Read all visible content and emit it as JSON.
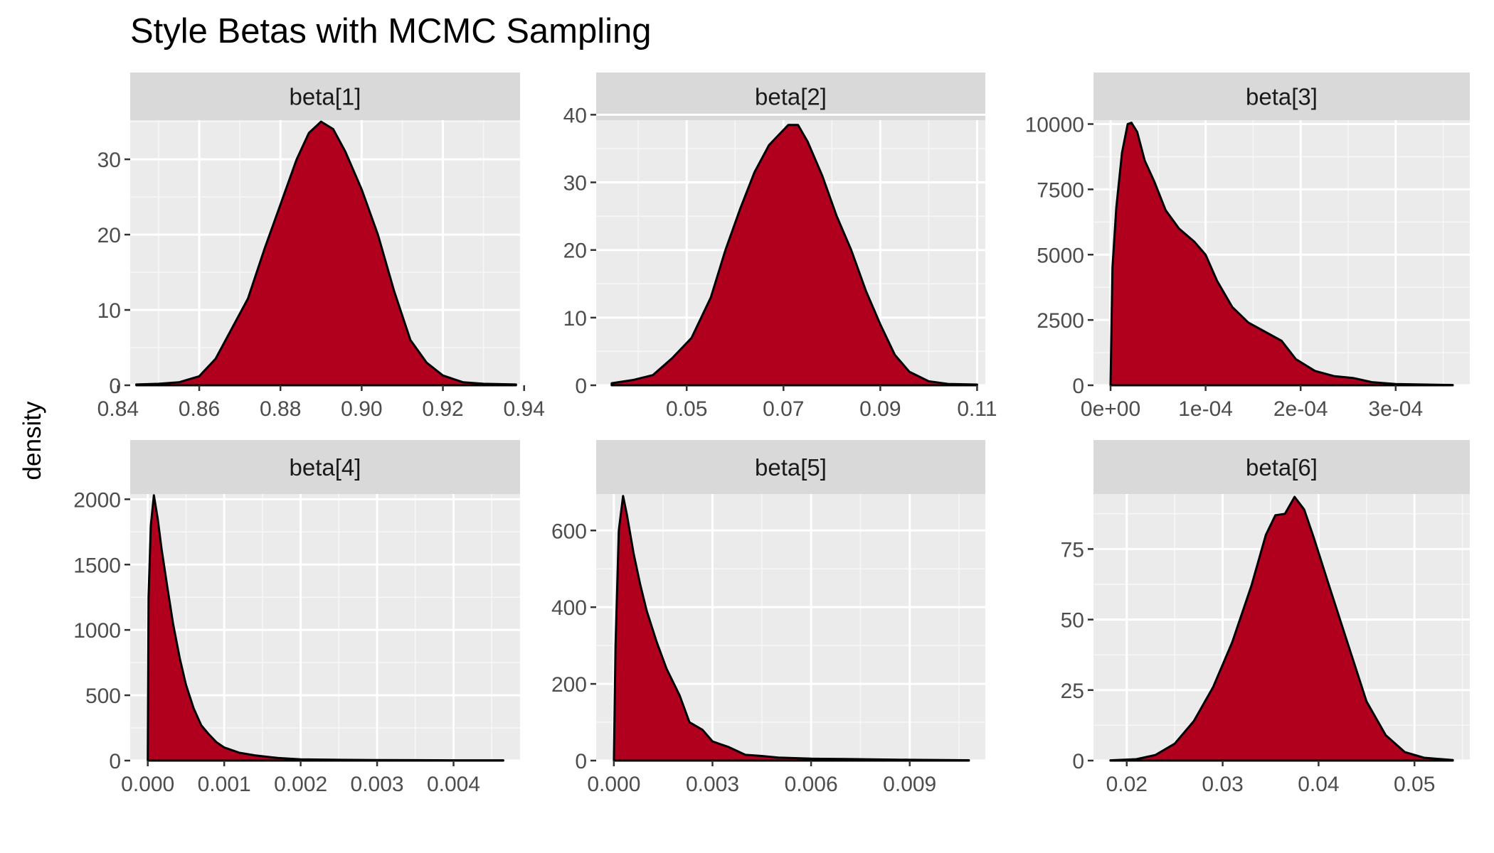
{
  "figure": {
    "title": "Style Betas with MCMC Sampling",
    "ylabel": "density",
    "fill_color": "#B0001E",
    "panel_bg": "#EBEBEB",
    "strip_bg": "#D9D9D9"
  },
  "chart_data": [
    {
      "type": "area",
      "title": "beta[1]",
      "xlim": [
        0.843,
        0.939
      ],
      "ylim": [
        0,
        35.2
      ],
      "xticks": [
        0.84,
        0.86,
        0.88,
        0.9,
        0.92,
        0.94
      ],
      "xticklabels": [
        "0.84",
        "0.86",
        "0.88",
        "0.90",
        "0.92",
        "0.94"
      ],
      "yticks": [
        0,
        10,
        20,
        30
      ],
      "yticklabels": [
        "0",
        "10",
        "20",
        "30"
      ],
      "x": [
        0.8445,
        0.85,
        0.855,
        0.86,
        0.864,
        0.868,
        0.872,
        0.876,
        0.88,
        0.884,
        0.887,
        0.89,
        0.893,
        0.896,
        0.9,
        0.904,
        0.908,
        0.912,
        0.916,
        0.92,
        0.925,
        0.93,
        0.938
      ],
      "y": [
        0.1,
        0.2,
        0.4,
        1.2,
        3.5,
        7.5,
        11.5,
        18,
        24,
        30,
        33.5,
        35,
        34,
        31,
        26,
        20,
        12.5,
        6,
        3,
        1.3,
        0.4,
        0.2,
        0.1
      ]
    },
    {
      "type": "area",
      "title": "beta[2]",
      "xlim": [
        0.0313,
        0.1117
      ],
      "ylim": [
        0,
        39.2
      ],
      "xticks": [
        0.05,
        0.07,
        0.09,
        0.11
      ],
      "xticklabels": [
        "0.05",
        "0.07",
        "0.09",
        "0.11"
      ],
      "yticks": [
        0,
        10,
        20,
        30,
        40
      ],
      "yticklabels": [
        "0",
        "10",
        "20",
        "30",
        "40"
      ],
      "x": [
        0.0345,
        0.039,
        0.043,
        0.047,
        0.051,
        0.055,
        0.058,
        0.061,
        0.064,
        0.067,
        0.069,
        0.071,
        0.073,
        0.075,
        0.078,
        0.081,
        0.084,
        0.087,
        0.09,
        0.093,
        0.096,
        0.1,
        0.104,
        0.11
      ],
      "y": [
        0.3,
        0.8,
        1.5,
        4,
        7,
        13,
        20,
        26,
        31.5,
        35.5,
        37,
        38.5,
        38.5,
        36,
        31,
        25,
        20,
        14,
        9,
        4.5,
        2,
        0.6,
        0.2,
        0.1
      ]
    },
    {
      "type": "area",
      "title": "beta[3]",
      "xlim": [
        -1.8e-05,
        0.000378
      ],
      "ylim": [
        0,
        10150
      ],
      "xticks": [
        0,
        0.0001,
        0.0002,
        0.0003
      ],
      "xticklabels": [
        "0e+00",
        "1e-04",
        "2e-04",
        "3e-04"
      ],
      "yticks": [
        0,
        2500,
        5000,
        7500,
        10000
      ],
      "yticklabels": [
        "0",
        "2500",
        "5000",
        "7500",
        "10000"
      ],
      "x": [
        0.0,
        2e-06,
        6e-06,
        1.2e-05,
        1.8e-05,
        2.2e-05,
        2.8e-05,
        3.6e-05,
        4.6e-05,
        5.8e-05,
        7.2e-05,
        8.8e-05,
        0.0001,
        0.000112,
        0.000128,
        0.000145,
        0.000165,
        0.00018,
        0.000195,
        0.000215,
        0.000235,
        0.000255,
        0.000275,
        0.0003,
        0.00036
      ],
      "y": [
        0,
        4500,
        6800,
        8900,
        10000,
        10050,
        9700,
        8600,
        7800,
        6700,
        6000,
        5500,
        5000,
        4000,
        3000,
        2400,
        2000,
        1700,
        1000,
        550,
        350,
        280,
        120,
        50,
        10
      ]
    },
    {
      "type": "area",
      "title": "beta[4]",
      "xlim": [
        -0.00023,
        0.00487
      ],
      "ylim": [
        0,
        2040
      ],
      "xticks": [
        0,
        0.001,
        0.002,
        0.003,
        0.004
      ],
      "xticklabels": [
        "0.000",
        "0.001",
        "0.002",
        "0.003",
        "0.004"
      ],
      "yticks": [
        0,
        500,
        1000,
        1500,
        2000
      ],
      "yticklabels": [
        "0",
        "500",
        "1000",
        "1500",
        "2000"
      ],
      "x": [
        0.0,
        1e-05,
        4e-05,
        8e-05,
        0.00013,
        0.00018,
        0.00025,
        0.00033,
        0.00042,
        0.0005,
        0.0006,
        0.0007,
        0.0008,
        0.0009,
        0.001,
        0.0012,
        0.0014,
        0.0017,
        0.002,
        0.0025,
        0.003,
        0.0035,
        0.004,
        0.00465
      ],
      "y": [
        0,
        1250,
        1800,
        2030,
        1850,
        1620,
        1350,
        1050,
        780,
        580,
        400,
        270,
        200,
        140,
        100,
        60,
        40,
        20,
        10,
        6,
        4,
        3,
        2,
        2
      ]
    },
    {
      "type": "area",
      "title": "beta[5]",
      "xlim": [
        -0.000538,
        0.0113
      ],
      "ylim": [
        0,
        695
      ],
      "xticks": [
        0,
        0.003,
        0.006,
        0.009
      ],
      "xticklabels": [
        "0.000",
        "0.003",
        "0.006",
        "0.009"
      ],
      "yticks": [
        0,
        200,
        400,
        600
      ],
      "yticklabels": [
        "0",
        "200",
        "400",
        "600"
      ],
      "x": [
        0.0,
        5e-05,
        0.00015,
        0.00028,
        0.0004,
        0.0006,
        0.0008,
        0.001,
        0.0013,
        0.0016,
        0.002,
        0.0023,
        0.0027,
        0.003,
        0.0035,
        0.004,
        0.0045,
        0.005,
        0.006,
        0.007,
        0.008,
        0.009,
        0.0108
      ],
      "y": [
        0,
        300,
        600,
        690,
        640,
        540,
        460,
        390,
        310,
        240,
        170,
        100,
        80,
        50,
        35,
        15,
        12,
        8,
        5,
        4,
        3,
        2,
        1
      ]
    },
    {
      "type": "area",
      "title": "beta[6]",
      "xlim": [
        0.01653,
        0.05577
      ],
      "ylim": [
        0,
        94.5
      ],
      "xticks": [
        0.02,
        0.03,
        0.04,
        0.05
      ],
      "xticklabels": [
        "0.02",
        "0.03",
        "0.04",
        "0.05"
      ],
      "yticks": [
        0,
        25,
        50,
        75
      ],
      "yticklabels": [
        "0",
        "25",
        "50",
        "75"
      ],
      "x": [
        0.0183,
        0.021,
        0.023,
        0.025,
        0.027,
        0.029,
        0.031,
        0.033,
        0.0345,
        0.0355,
        0.0365,
        0.0375,
        0.0385,
        0.0395,
        0.041,
        0.043,
        0.045,
        0.047,
        0.049,
        0.051,
        0.054
      ],
      "y": [
        0.1,
        0.5,
        2,
        6,
        14,
        26,
        42,
        62,
        80,
        87,
        87.5,
        93.5,
        89,
        79,
        63,
        42,
        21,
        9,
        3,
        1,
        0.2
      ]
    }
  ]
}
